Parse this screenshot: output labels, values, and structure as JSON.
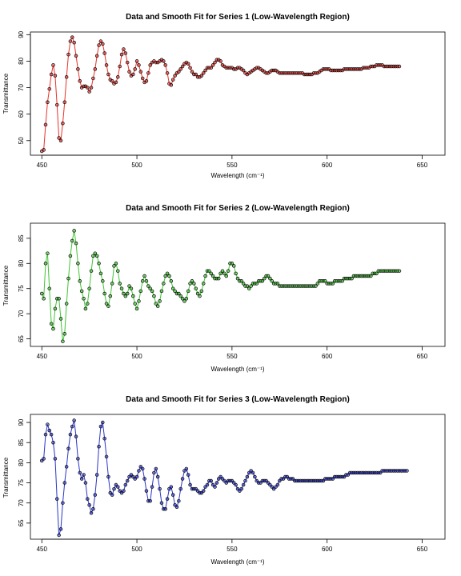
{
  "chart_data": [
    {
      "type": "scatter",
      "title": "Data and Smooth Fit for Series 1 (Low-Wavelength Region)",
      "xlabel": "Wavelength (cm⁻¹)",
      "ylabel": "Transmittance",
      "xlim": [
        444,
        662
      ],
      "ylim": [
        44.5,
        91
      ],
      "xticks": [
        450,
        500,
        550,
        600,
        650
      ],
      "yticks": [
        50,
        60,
        70,
        80,
        90
      ],
      "grid": false,
      "series": [
        {
          "color": "#e8322b",
          "x_start": 450,
          "x_step": 1,
          "values": [
            46.0,
            46.5,
            56.0,
            64.5,
            69.5,
            75.0,
            78.5,
            74.5,
            63.5,
            51.0,
            50.0,
            56.5,
            64.5,
            74.0,
            82.5,
            87.5,
            89.0,
            87.0,
            82.0,
            77.0,
            72.5,
            70.0,
            70.5,
            70.5,
            70.0,
            68.5,
            70.0,
            73.5,
            77.0,
            82.0,
            86.0,
            87.5,
            86.5,
            83.0,
            78.5,
            75.0,
            73.0,
            72.5,
            71.5,
            72.0,
            74.0,
            78.0,
            82.5,
            84.5,
            83.0,
            79.5,
            76.0,
            74.5,
            75.0,
            77.0,
            80.0,
            78.5,
            76.0,
            73.5,
            72.0,
            72.5,
            75.5,
            78.5,
            79.5,
            80.0,
            79.5,
            79.5,
            80.0,
            80.5,
            80.0,
            78.5,
            75.5,
            71.5,
            71.0,
            73.0,
            74.5,
            75.5,
            76.0,
            77.0,
            78.0,
            79.0,
            79.5,
            79.0,
            77.5,
            76.0,
            75.0,
            75.0,
            74.0,
            74.0,
            74.5,
            75.5,
            76.5,
            77.5,
            77.5,
            77.5,
            78.5,
            79.5,
            80.5,
            80.5,
            80.0,
            78.5,
            78.0,
            77.5,
            77.5,
            77.5,
            77.5,
            77.0,
            77.0,
            77.5,
            77.5,
            77.0,
            76.5,
            75.5,
            75.0,
            75.5,
            76.0,
            76.5,
            77.0,
            77.5,
            77.5,
            77.0,
            76.5,
            76.0,
            75.5,
            75.5,
            76.0,
            76.5,
            76.5,
            76.5,
            76.0,
            75.5,
            75.5,
            75.5,
            75.5,
            75.5,
            75.5,
            75.5,
            75.5,
            75.5,
            75.5,
            75.5,
            75.5,
            75.5,
            75.0,
            75.0,
            75.0,
            75.0,
            75.0,
            75.5,
            75.5,
            75.5,
            76.0,
            76.5,
            77.0,
            77.0,
            77.0,
            77.0,
            76.5,
            76.5,
            76.5,
            76.5,
            76.5,
            76.5,
            76.5,
            77.0,
            77.0,
            77.0,
            77.0,
            77.0,
            77.0,
            77.0,
            77.0,
            77.0,
            77.0,
            77.5,
            77.5,
            77.5,
            77.5,
            78.0,
            78.0,
            78.0,
            78.5,
            78.5,
            78.5,
            78.5,
            78.0,
            78.0,
            78.0,
            78.0,
            78.0,
            78.0,
            78.0,
            78.0,
            78.0
          ]
        }
      ]
    },
    {
      "type": "scatter",
      "title": "Data and Smooth Fit for Series 2 (Low-Wavelength Region)",
      "xlabel": "Wavelength (cm⁻¹)",
      "ylabel": "Transmittance",
      "xlim": [
        444,
        662
      ],
      "ylim": [
        63.5,
        88
      ],
      "xticks": [
        450,
        500,
        550,
        600,
        650
      ],
      "yticks": [
        65,
        70,
        75,
        80,
        85
      ],
      "grid": false,
      "series": [
        {
          "color": "#40c533",
          "x_start": 450,
          "x_step": 1,
          "values": [
            74.0,
            73.0,
            80.0,
            82.0,
            75.0,
            68.0,
            67.0,
            71.0,
            73.0,
            73.0,
            69.0,
            64.5,
            66.0,
            72.0,
            77.0,
            81.5,
            84.5,
            86.5,
            84.0,
            80.0,
            76.5,
            74.5,
            73.0,
            71.0,
            72.0,
            75.0,
            78.5,
            81.5,
            82.0,
            81.5,
            80.0,
            78.0,
            76.5,
            74.0,
            72.0,
            71.5,
            73.5,
            76.0,
            79.5,
            80.0,
            78.5,
            76.0,
            75.0,
            74.0,
            73.5,
            74.0,
            75.5,
            75.0,
            73.5,
            72.0,
            71.0,
            72.5,
            74.5,
            76.5,
            77.5,
            76.5,
            75.5,
            75.0,
            74.5,
            73.5,
            72.0,
            71.5,
            72.5,
            74.5,
            76.0,
            77.5,
            78.0,
            77.5,
            76.5,
            75.0,
            74.5,
            74.0,
            74.0,
            73.5,
            73.0,
            72.5,
            73.0,
            74.5,
            76.0,
            76.5,
            76.0,
            75.0,
            74.0,
            73.5,
            74.5,
            76.0,
            77.5,
            78.5,
            78.5,
            78.0,
            77.5,
            77.0,
            77.0,
            77.0,
            78.0,
            78.5,
            78.0,
            77.5,
            78.5,
            80.0,
            80.0,
            79.5,
            78.0,
            77.0,
            76.5,
            76.5,
            76.0,
            75.5,
            75.5,
            75.0,
            75.5,
            76.0,
            76.0,
            76.0,
            76.5,
            76.5,
            76.5,
            77.0,
            77.5,
            77.5,
            77.0,
            76.5,
            76.0,
            76.0,
            76.0,
            75.5,
            75.5,
            75.5,
            75.5,
            75.5,
            75.5,
            75.5,
            75.5,
            75.5,
            75.5,
            75.5,
            75.5,
            75.5,
            75.5,
            75.5,
            75.5,
            75.5,
            75.5,
            75.5,
            75.5,
            76.0,
            76.5,
            76.5,
            76.5,
            76.5,
            76.0,
            76.0,
            76.0,
            76.0,
            76.5,
            76.5,
            76.5,
            76.5,
            76.5,
            77.0,
            77.0,
            77.0,
            77.0,
            77.0,
            77.5,
            77.5,
            77.5,
            77.5,
            77.5,
            77.5,
            77.5,
            77.5,
            77.5,
            77.5,
            78.0,
            78.0,
            78.0,
            78.5,
            78.5,
            78.5,
            78.5,
            78.5,
            78.5,
            78.5,
            78.5,
            78.5,
            78.5,
            78.5,
            78.5
          ]
        }
      ]
    },
    {
      "type": "scatter",
      "title": "Data and Smooth Fit for Series 3 (Low-Wavelength Region)",
      "xlabel": "Wavelength (cm⁻¹)",
      "ylabel": "Transmittance",
      "xlim": [
        444,
        662
      ],
      "ylim": [
        61,
        92
      ],
      "xticks": [
        450,
        500,
        550,
        600,
        650
      ],
      "yticks": [
        65,
        70,
        75,
        80,
        85,
        90
      ],
      "grid": false,
      "series": [
        {
          "color": "#2b35c8",
          "x_start": 450,
          "x_step": 1,
          "values": [
            80.5,
            81.0,
            87.0,
            89.5,
            88.0,
            87.0,
            85.0,
            81.0,
            71.0,
            62.0,
            63.5,
            70.0,
            75.0,
            79.0,
            83.5,
            87.0,
            89.0,
            90.5,
            86.5,
            81.0,
            77.5,
            76.0,
            77.0,
            75.0,
            71.0,
            69.5,
            67.5,
            68.5,
            72.0,
            77.0,
            84.0,
            89.0,
            90.0,
            86.0,
            81.5,
            76.5,
            72.5,
            72.0,
            73.5,
            74.5,
            74.0,
            73.0,
            72.5,
            73.0,
            74.5,
            75.5,
            76.5,
            77.0,
            76.5,
            76.0,
            76.5,
            78.0,
            79.0,
            78.5,
            76.0,
            73.0,
            70.5,
            70.5,
            74.0,
            77.5,
            78.5,
            76.5,
            73.5,
            70.0,
            68.5,
            68.5,
            71.0,
            73.5,
            74.0,
            72.0,
            69.5,
            69.0,
            70.5,
            73.5,
            76.0,
            78.0,
            78.5,
            77.0,
            74.5,
            73.5,
            73.5,
            73.5,
            73.0,
            72.5,
            72.5,
            73.0,
            74.0,
            74.5,
            75.5,
            75.5,
            74.5,
            74.0,
            75.0,
            76.0,
            76.5,
            76.0,
            75.5,
            75.0,
            75.5,
            75.5,
            75.5,
            75.0,
            74.5,
            73.5,
            73.0,
            73.5,
            74.5,
            75.5,
            76.5,
            77.5,
            78.0,
            77.5,
            76.5,
            75.5,
            75.0,
            75.0,
            75.5,
            75.5,
            75.5,
            75.0,
            74.5,
            74.0,
            73.5,
            74.0,
            74.5,
            75.5,
            76.0,
            76.0,
            76.5,
            76.5,
            76.0,
            76.0,
            76.0,
            75.5,
            75.5,
            75.5,
            75.5,
            75.5,
            75.5,
            75.5,
            75.5,
            75.5,
            75.5,
            75.5,
            75.5,
            75.5,
            75.5,
            75.5,
            75.5,
            76.0,
            76.0,
            76.0,
            76.0,
            76.0,
            76.5,
            76.5,
            76.5,
            76.5,
            76.5,
            76.5,
            77.0,
            77.0,
            77.5,
            77.5,
            77.5,
            77.5,
            77.5,
            77.5,
            77.5,
            77.5,
            77.5,
            77.5,
            77.5,
            77.5,
            77.5,
            77.5,
            77.5,
            77.5,
            77.5,
            78.0,
            78.0,
            78.0,
            78.0,
            78.0,
            78.0,
            78.0,
            78.0,
            78.0,
            78.0,
            78.0,
            78.0,
            78.0,
            78.0
          ]
        }
      ]
    }
  ]
}
